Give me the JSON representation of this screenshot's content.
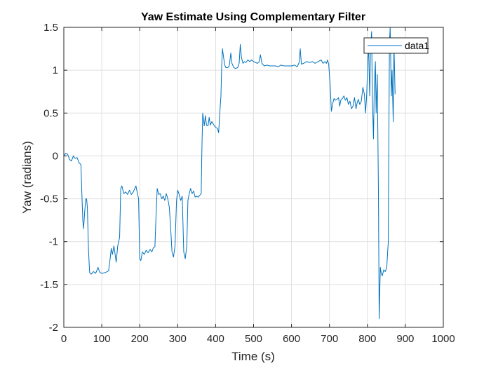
{
  "chart_data": {
    "type": "line",
    "title": "Yaw Estimate Using Complementary Filter",
    "xlabel": "Time (s)",
    "ylabel": "Yaw (radians)",
    "xlim": [
      0,
      1000
    ],
    "ylim": [
      -2,
      1.5
    ],
    "xticks": [
      0,
      100,
      200,
      300,
      400,
      500,
      600,
      700,
      800,
      900,
      1000
    ],
    "yticks": [
      -2,
      -1.5,
      -1,
      -0.5,
      0,
      0.5,
      1,
      1.5
    ],
    "xtick_labels": [
      "0",
      "100",
      "200",
      "300",
      "400",
      "500",
      "600",
      "700",
      "800",
      "900",
      "1000"
    ],
    "ytick_labels": [
      "-2",
      "-1.5",
      "-1",
      "-0.5",
      "0",
      "0.5",
      "1",
      "1.5"
    ],
    "grid": true,
    "legend_position": "top-right",
    "series_color": "#0072BD",
    "series": [
      {
        "name": "data1",
        "points": [
          [
            0,
            0.0
          ],
          [
            5,
            0.03
          ],
          [
            10,
            0.02
          ],
          [
            15,
            -0.04
          ],
          [
            20,
            -0.06
          ],
          [
            25,
            0.0
          ],
          [
            30,
            -0.03
          ],
          [
            35,
            -0.02
          ],
          [
            40,
            -0.08
          ],
          [
            45,
            -0.1
          ],
          [
            48,
            -0.5
          ],
          [
            50,
            -0.75
          ],
          [
            52,
            -0.85
          ],
          [
            55,
            -0.65
          ],
          [
            58,
            -0.5
          ],
          [
            60,
            -0.5
          ],
          [
            62,
            -0.6
          ],
          [
            65,
            -1.1
          ],
          [
            68,
            -1.36
          ],
          [
            72,
            -1.38
          ],
          [
            78,
            -1.35
          ],
          [
            84,
            -1.37
          ],
          [
            90,
            -1.3
          ],
          [
            95,
            -1.36
          ],
          [
            100,
            -1.37
          ],
          [
            110,
            -1.36
          ],
          [
            118,
            -1.34
          ],
          [
            122,
            -1.2
          ],
          [
            125,
            -1.08
          ],
          [
            128,
            -1.15
          ],
          [
            132,
            -1.05
          ],
          [
            138,
            -1.24
          ],
          [
            142,
            -1.05
          ],
          [
            147,
            -0.95
          ],
          [
            150,
            -0.38
          ],
          [
            153,
            -0.35
          ],
          [
            158,
            -0.44
          ],
          [
            163,
            -0.42
          ],
          [
            168,
            -0.45
          ],
          [
            173,
            -0.4
          ],
          [
            178,
            -0.45
          ],
          [
            183,
            -0.42
          ],
          [
            187,
            -0.38
          ],
          [
            190,
            -0.35
          ],
          [
            194,
            -0.44
          ],
          [
            197,
            -0.5
          ],
          [
            200,
            -1.2
          ],
          [
            203,
            -1.22
          ],
          [
            207,
            -1.12
          ],
          [
            212,
            -1.15
          ],
          [
            217,
            -1.1
          ],
          [
            222,
            -1.13
          ],
          [
            227,
            -1.09
          ],
          [
            232,
            -1.12
          ],
          [
            236,
            -1.07
          ],
          [
            240,
            -1.06
          ],
          [
            243,
            -0.7
          ],
          [
            246,
            -0.38
          ],
          [
            250,
            -0.45
          ],
          [
            254,
            -0.44
          ],
          [
            258,
            -0.5
          ],
          [
            262,
            -0.47
          ],
          [
            266,
            -0.52
          ],
          [
            270,
            -0.44
          ],
          [
            274,
            -0.5
          ],
          [
            278,
            -0.6
          ],
          [
            282,
            -0.88
          ],
          [
            285,
            -1.12
          ],
          [
            289,
            -1.18
          ],
          [
            293,
            -1.05
          ],
          [
            297,
            -0.52
          ],
          [
            300,
            -0.4
          ],
          [
            304,
            -0.45
          ],
          [
            308,
            -0.52
          ],
          [
            312,
            -0.47
          ],
          [
            316,
            -1.12
          ],
          [
            320,
            -1.2
          ],
          [
            324,
            -1.05
          ],
          [
            327,
            -0.52
          ],
          [
            330,
            -0.45
          ],
          [
            334,
            -0.38
          ],
          [
            338,
            -0.44
          ],
          [
            342,
            -0.41
          ],
          [
            346,
            -0.48
          ],
          [
            350,
            -0.47
          ],
          [
            354,
            -0.48
          ],
          [
            358,
            -0.46
          ],
          [
            362,
            -0.44
          ],
          [
            364,
            0.12
          ],
          [
            366,
            0.5
          ],
          [
            368,
            0.43
          ],
          [
            370,
            0.35
          ],
          [
            373,
            0.47
          ],
          [
            376,
            0.36
          ],
          [
            380,
            0.35
          ],
          [
            383,
            0.45
          ],
          [
            386,
            0.36
          ],
          [
            390,
            0.4
          ],
          [
            393,
            0.38
          ],
          [
            397,
            0.35
          ],
          [
            401,
            0.33
          ],
          [
            405,
            0.32
          ],
          [
            408,
            0.27
          ],
          [
            411,
            0.5
          ],
          [
            414,
            0.7
          ],
          [
            416,
            1.05
          ],
          [
            418,
            1.25
          ],
          [
            421,
            1.15
          ],
          [
            424,
            1.06
          ],
          [
            427,
            1.03
          ],
          [
            432,
            1.03
          ],
          [
            436,
            1.05
          ],
          [
            440,
            1.2
          ],
          [
            443,
            1.08
          ],
          [
            448,
            1.03
          ],
          [
            452,
            1.02
          ],
          [
            458,
            1.03
          ],
          [
            462,
            1.08
          ],
          [
            465,
            1.3
          ],
          [
            468,
            1.15
          ],
          [
            472,
            1.08
          ],
          [
            476,
            1.1
          ],
          [
            480,
            1.09
          ],
          [
            485,
            1.12
          ],
          [
            490,
            1.1
          ],
          [
            495,
            1.12
          ],
          [
            500,
            1.1
          ],
          [
            505,
            1.09
          ],
          [
            510,
            1.08
          ],
          [
            515,
            1.1
          ],
          [
            518,
            1.18
          ],
          [
            522,
            1.08
          ],
          [
            528,
            1.05
          ],
          [
            535,
            1.06
          ],
          [
            542,
            1.05
          ],
          [
            550,
            1.05
          ],
          [
            558,
            1.05
          ],
          [
            565,
            1.04
          ],
          [
            572,
            1.06
          ],
          [
            580,
            1.05
          ],
          [
            590,
            1.05
          ],
          [
            600,
            1.05
          ],
          [
            608,
            1.06
          ],
          [
            615,
            1.04
          ],
          [
            620,
            1.09
          ],
          [
            623,
            1.25
          ],
          [
            626,
            1.07
          ],
          [
            632,
            1.08
          ],
          [
            640,
            1.1
          ],
          [
            648,
            1.09
          ],
          [
            655,
            1.1
          ],
          [
            662,
            1.08
          ],
          [
            670,
            1.1
          ],
          [
            678,
            1.12
          ],
          [
            683,
            1.08
          ],
          [
            688,
            1.1
          ],
          [
            692,
            1.08
          ],
          [
            695,
            1.12
          ],
          [
            698,
            1.07
          ],
          [
            702,
            0.82
          ],
          [
            705,
            0.52
          ],
          [
            708,
            0.6
          ],
          [
            712,
            0.67
          ],
          [
            716,
            0.65
          ],
          [
            720,
            0.66
          ],
          [
            724,
            0.68
          ],
          [
            727,
            0.58
          ],
          [
            730,
            0.65
          ],
          [
            734,
            0.67
          ],
          [
            738,
            0.7
          ],
          [
            742,
            0.65
          ],
          [
            746,
            0.68
          ],
          [
            750,
            0.6
          ],
          [
            754,
            0.64
          ],
          [
            758,
            0.55
          ],
          [
            762,
            0.58
          ],
          [
            766,
            0.68
          ],
          [
            770,
            0.55
          ],
          [
            773,
            0.62
          ],
          [
            776,
            0.66
          ],
          [
            780,
            0.6
          ],
          [
            784,
            0.64
          ],
          [
            788,
            0.8
          ],
          [
            792,
            0.72
          ],
          [
            795,
            0.5
          ],
          [
            798,
            0.7
          ],
          [
            801,
            1.1
          ],
          [
            803,
            1.3
          ],
          [
            806,
            0.7
          ],
          [
            808,
            1.2
          ],
          [
            811,
            1.45
          ],
          [
            813,
            0.7
          ],
          [
            816,
            0.2
          ],
          [
            818,
            0.8
          ],
          [
            821,
            1.1
          ],
          [
            823,
            0.5
          ],
          [
            826,
            0.95
          ],
          [
            829,
            -0.4
          ],
          [
            831,
            -1.9
          ],
          [
            834,
            -1.3
          ],
          [
            836,
            -1.36
          ],
          [
            839,
            -1.4
          ],
          [
            843,
            -1.33
          ],
          [
            847,
            -1.35
          ],
          [
            851,
            -1.3
          ],
          [
            855,
            -1.0
          ],
          [
            858,
            1.3
          ],
          [
            860,
            1.5
          ],
          [
            863,
            0.7
          ],
          [
            865,
            1.0
          ],
          [
            868,
            0.4
          ],
          [
            870,
            1.3
          ],
          [
            873,
            0.72
          ]
        ]
      }
    ]
  }
}
